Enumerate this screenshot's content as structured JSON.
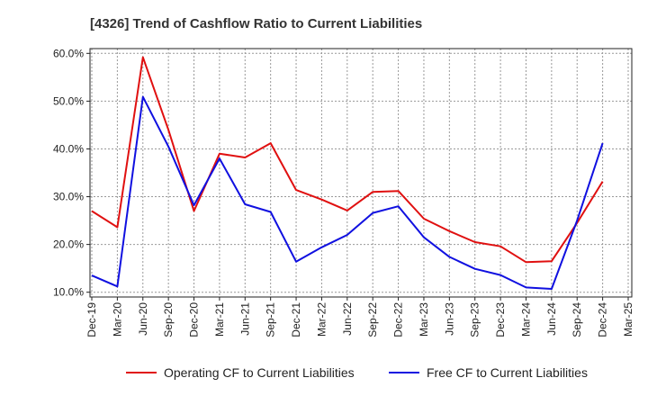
{
  "chart_data": {
    "type": "line",
    "title": "[4326]  Trend of Cashflow Ratio to Current Liabilities",
    "xlabel": "",
    "ylabel": "",
    "categories": [
      "Dec-19",
      "Mar-20",
      "Jun-20",
      "Sep-20",
      "Dec-20",
      "Mar-21",
      "Jun-21",
      "Sep-21",
      "Dec-21",
      "Mar-22",
      "Jun-22",
      "Sep-22",
      "Dec-22",
      "Mar-23",
      "Jun-23",
      "Sep-23",
      "Dec-23",
      "Mar-24",
      "Jun-24",
      "Sep-24",
      "Dec-24",
      "Mar-25"
    ],
    "ylim": [
      9,
      61
    ],
    "yticks": [
      10,
      20,
      30,
      40,
      50,
      60
    ],
    "ytick_labels": [
      "10.0%",
      "20.0%",
      "30.0%",
      "40.0%",
      "50.0%",
      "60.0%"
    ],
    "grid": true,
    "legend_position": "bottom",
    "series": [
      {
        "name": "Operating CF to Current Liabilities",
        "color": "#e01010",
        "values": [
          27.0,
          23.6,
          59.2,
          44.0,
          27.0,
          39.0,
          38.2,
          41.2,
          31.4,
          29.4,
          27.1,
          31.0,
          31.2,
          25.4,
          22.8,
          20.5,
          19.6,
          16.3,
          16.5,
          24.5,
          33.2,
          null
        ]
      },
      {
        "name": "Free CF to Current Liabilities",
        "color": "#1010e0",
        "values": [
          13.5,
          11.2,
          50.9,
          40.5,
          28.2,
          38.0,
          28.4,
          26.8,
          16.4,
          19.4,
          22.0,
          26.6,
          28.0,
          21.5,
          17.4,
          14.9,
          13.6,
          11.0,
          10.7,
          25.0,
          41.2,
          null
        ]
      }
    ]
  }
}
